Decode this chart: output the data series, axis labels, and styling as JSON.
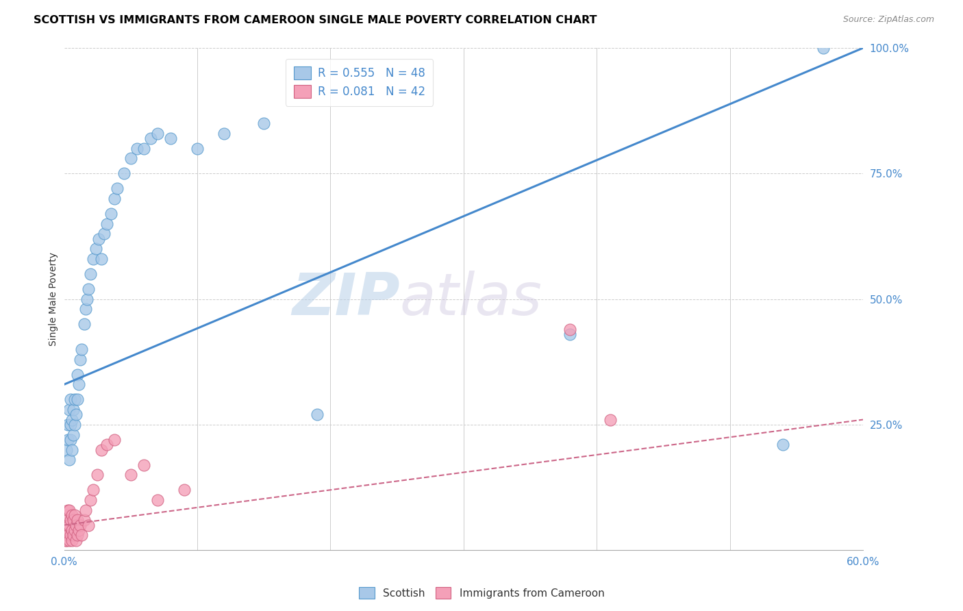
{
  "title": "SCOTTISH VS IMMIGRANTS FROM CAMEROON SINGLE MALE POVERTY CORRELATION CHART",
  "source": "Source: ZipAtlas.com",
  "ylabel": "Single Male Poverty",
  "xlim": [
    0.0,
    0.6
  ],
  "ylim": [
    0.0,
    1.0
  ],
  "xtick_positions": [
    0.0,
    0.1,
    0.2,
    0.3,
    0.4,
    0.5,
    0.6
  ],
  "xticklabels": [
    "0.0%",
    "",
    "",
    "",
    "",
    "",
    "60.0%"
  ],
  "ytick_positions": [
    0.0,
    0.25,
    0.5,
    0.75,
    1.0
  ],
  "yticklabels_right": [
    "",
    "25.0%",
    "50.0%",
    "75.0%",
    "100.0%"
  ],
  "legend_r1": "R = 0.555",
  "legend_n1": "N = 48",
  "legend_r2": "R = 0.081",
  "legend_n2": "N = 42",
  "blue_fill": "#a8c8e8",
  "blue_edge": "#5599cc",
  "pink_fill": "#f4a0b8",
  "pink_edge": "#d06080",
  "blue_line": "#4488cc",
  "pink_line": "#cc6688",
  "watermark_zip": "ZIP",
  "watermark_atlas": "atlas",
  "scottish_x": [
    0.002,
    0.003,
    0.003,
    0.004,
    0.004,
    0.005,
    0.005,
    0.005,
    0.006,
    0.006,
    0.007,
    0.007,
    0.008,
    0.008,
    0.009,
    0.01,
    0.01,
    0.011,
    0.012,
    0.013,
    0.015,
    0.016,
    0.017,
    0.018,
    0.02,
    0.022,
    0.024,
    0.026,
    0.028,
    0.03,
    0.032,
    0.035,
    0.038,
    0.04,
    0.045,
    0.05,
    0.055,
    0.06,
    0.065,
    0.07,
    0.08,
    0.1,
    0.12,
    0.15,
    0.19,
    0.38,
    0.54,
    0.57
  ],
  "scottish_y": [
    0.2,
    0.22,
    0.25,
    0.18,
    0.28,
    0.22,
    0.25,
    0.3,
    0.2,
    0.26,
    0.23,
    0.28,
    0.25,
    0.3,
    0.27,
    0.3,
    0.35,
    0.33,
    0.38,
    0.4,
    0.45,
    0.48,
    0.5,
    0.52,
    0.55,
    0.58,
    0.6,
    0.62,
    0.58,
    0.63,
    0.65,
    0.67,
    0.7,
    0.72,
    0.75,
    0.78,
    0.8,
    0.8,
    0.82,
    0.83,
    0.82,
    0.8,
    0.83,
    0.85,
    0.27,
    0.43,
    0.21,
    1.0
  ],
  "cameroon_x": [
    0.001,
    0.001,
    0.002,
    0.002,
    0.002,
    0.003,
    0.003,
    0.003,
    0.004,
    0.004,
    0.004,
    0.005,
    0.005,
    0.006,
    0.006,
    0.006,
    0.007,
    0.007,
    0.008,
    0.008,
    0.009,
    0.009,
    0.01,
    0.01,
    0.011,
    0.012,
    0.013,
    0.015,
    0.016,
    0.018,
    0.02,
    0.022,
    0.025,
    0.028,
    0.032,
    0.038,
    0.05,
    0.06,
    0.07,
    0.09,
    0.38,
    0.41
  ],
  "cameroon_y": [
    0.02,
    0.04,
    0.02,
    0.05,
    0.07,
    0.03,
    0.05,
    0.08,
    0.02,
    0.05,
    0.08,
    0.03,
    0.06,
    0.02,
    0.04,
    0.07,
    0.03,
    0.06,
    0.04,
    0.07,
    0.02,
    0.05,
    0.03,
    0.06,
    0.04,
    0.05,
    0.03,
    0.06,
    0.08,
    0.05,
    0.1,
    0.12,
    0.15,
    0.2,
    0.21,
    0.22,
    0.15,
    0.17,
    0.1,
    0.12,
    0.44,
    0.26
  ],
  "scottish_line_x": [
    0.0,
    0.6
  ],
  "scottish_line_y": [
    0.33,
    1.0
  ],
  "cameroon_line_x": [
    0.0,
    0.6
  ],
  "cameroon_line_y": [
    0.05,
    0.26
  ]
}
